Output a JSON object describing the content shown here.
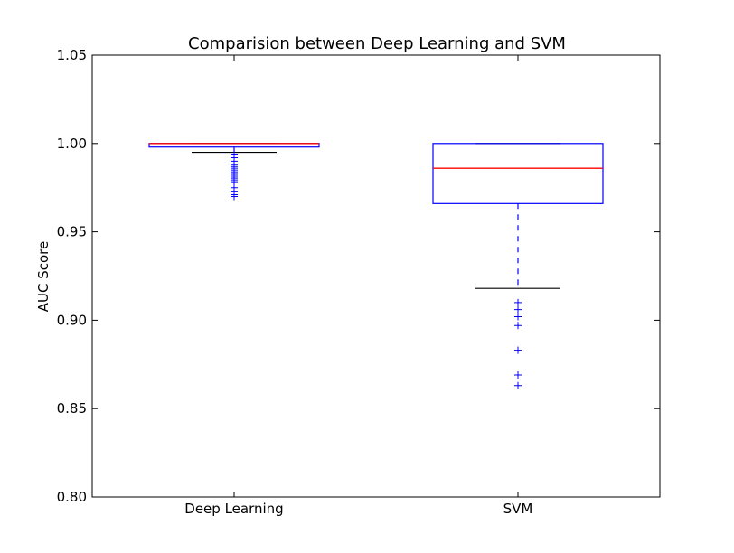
{
  "chart_data": {
    "type": "box",
    "title": "Comparision between Deep Learning and SVM",
    "xlabel": "",
    "ylabel": "AUC Score",
    "ylim": [
      0.8,
      1.05
    ],
    "yticks": [
      "0.80",
      "0.85",
      "0.90",
      "0.95",
      "1.00",
      "1.05"
    ],
    "categories": [
      "Deep Learning",
      "SVM"
    ],
    "grid": false,
    "legend": "none",
    "colors": {
      "box": "#0000ff",
      "median": "#ff0000",
      "whisker_cap": "#000000",
      "outlier": "#0000ff"
    },
    "series": [
      {
        "category": "Deep Learning",
        "whisker_low": 0.995,
        "q1": 0.998,
        "median": 1.0,
        "q3": 1.0,
        "whisker_high": 1.0,
        "outliers": [
          0.994,
          0.992,
          0.99,
          0.988,
          0.987,
          0.986,
          0.985,
          0.984,
          0.983,
          0.982,
          0.981,
          0.98,
          0.979,
          0.978,
          0.975,
          0.973,
          0.971,
          0.97
        ]
      },
      {
        "category": "SVM",
        "whisker_low": 0.918,
        "q1": 0.966,
        "median": 0.986,
        "q3": 1.0,
        "whisker_high": 1.0,
        "outliers": [
          0.91,
          0.906,
          0.902,
          0.897,
          0.883,
          0.869,
          0.863
        ]
      }
    ]
  }
}
